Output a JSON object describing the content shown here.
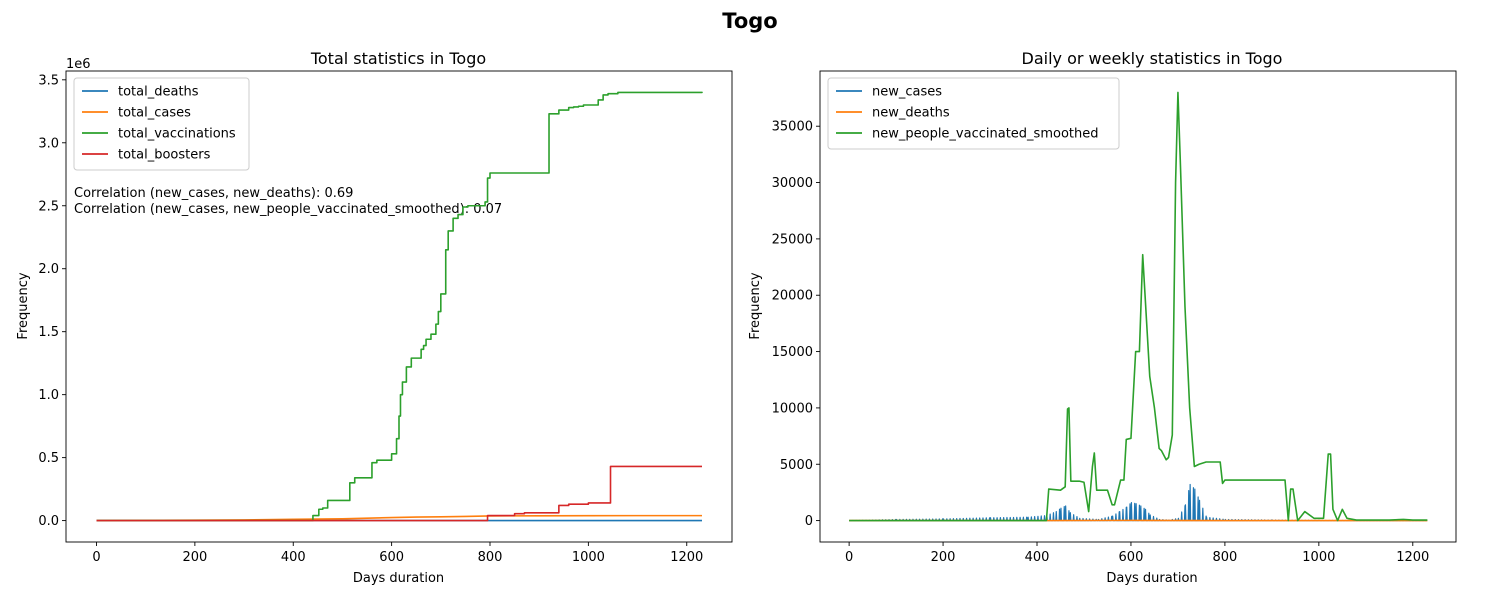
{
  "figure": {
    "title": "Togo"
  },
  "chart_data": [
    {
      "type": "line",
      "title": "Total statistics in Togo",
      "xlabel": "Days duration",
      "ylabel": "Frequency",
      "y_offset_label": "1e6",
      "xlim": [
        -62,
        1292
      ],
      "ylim": [
        -170000,
        3570000
      ],
      "xticks": [
        0,
        200,
        400,
        600,
        800,
        1000,
        1200
      ],
      "yticks": [
        0,
        500000,
        1000000,
        1500000,
        2000000,
        2500000,
        3000000,
        3500000
      ],
      "ytick_labels": [
        "0.0",
        "0.5",
        "1.0",
        "1.5",
        "2.0",
        "2.5",
        "3.0",
        "3.5"
      ],
      "legend_position": "upper left",
      "annotations": [
        "Correlation (new_cases, new_deaths): 0.69",
        "Correlation (new_cases, new_people_vaccinated_smoothed): 0.07"
      ],
      "series": [
        {
          "name": "total_deaths",
          "color": "#1f77b4",
          "x": [
            0,
            400,
            800,
            1231
          ],
          "y": [
            0,
            1000,
            290,
            290
          ]
        },
        {
          "name": "total_cases",
          "color": "#ff7f0e",
          "x": [
            0,
            200,
            300,
            400,
            500,
            600,
            650,
            700,
            750,
            800,
            900,
            1000,
            1100,
            1231
          ],
          "y": [
            0,
            3000,
            5000,
            10000,
            14000,
            24000,
            28000,
            30000,
            33000,
            37000,
            38000,
            39000,
            39500,
            39500
          ]
        },
        {
          "name": "total_vaccinations",
          "color": "#2ca02c",
          "step": true,
          "x": [
            0,
            440,
            452,
            460,
            470,
            515,
            525,
            560,
            570,
            585,
            600,
            610,
            615,
            618,
            622,
            630,
            640,
            650,
            660,
            665,
            670,
            680,
            690,
            695,
            700,
            710,
            715,
            725,
            735,
            745,
            755,
            790,
            795,
            800,
            850,
            920,
            940,
            950,
            960,
            970,
            980,
            990,
            1010,
            1020,
            1030,
            1040,
            1060,
            1100,
            1231
          ],
          "y": [
            0,
            40000,
            90000,
            100000,
            160000,
            300000,
            340000,
            460000,
            480000,
            480000,
            530000,
            650000,
            830000,
            1000000,
            1100000,
            1220000,
            1290000,
            1290000,
            1360000,
            1390000,
            1440000,
            1480000,
            1560000,
            1660000,
            1800000,
            2150000,
            2300000,
            2400000,
            2430000,
            2490000,
            2500000,
            2530000,
            2720000,
            2760000,
            2760000,
            3230000,
            3260000,
            3260000,
            3280000,
            3285000,
            3290000,
            3300000,
            3300000,
            3340000,
            3380000,
            3390000,
            3400000,
            3400000,
            3405000
          ]
        },
        {
          "name": "total_boosters",
          "color": "#d62728",
          "step": true,
          "x": [
            0,
            795,
            850,
            870,
            940,
            960,
            1000,
            1045,
            1231
          ],
          "y": [
            0,
            40000,
            55000,
            62000,
            120000,
            130000,
            140000,
            430000,
            430000
          ]
        }
      ]
    },
    {
      "type": "line",
      "title": "Daily or weekly statistics in Togo",
      "xlabel": "Days duration",
      "ylabel": "Frequency",
      "xlim": [
        -62,
        1292
      ],
      "ylim": [
        -1900,
        39900
      ],
      "xticks": [
        0,
        200,
        400,
        600,
        800,
        1000,
        1200
      ],
      "yticks": [
        0,
        5000,
        10000,
        15000,
        20000,
        25000,
        30000,
        35000
      ],
      "ytick_labels": [
        "0",
        "5000",
        "10000",
        "15000",
        "20000",
        "25000",
        "30000",
        "35000"
      ],
      "legend_position": "upper left",
      "series": [
        {
          "name": "new_cases",
          "color": "#1f77b4",
          "spiky": true,
          "x": [
            0,
            100,
            200,
            300,
            380,
            420,
            440,
            450,
            460,
            470,
            490,
            530,
            560,
            575,
            590,
            600,
            610,
            620,
            630,
            640,
            660,
            680,
            700,
            715,
            725,
            735,
            745,
            760,
            800,
            900,
            1000,
            1231
          ],
          "y": [
            0,
            100,
            150,
            250,
            300,
            450,
            800,
            1100,
            1300,
            700,
            200,
            100,
            400,
            800,
            1200,
            1600,
            1500,
            1300,
            1000,
            500,
            100,
            50,
            200,
            1400,
            3200,
            2800,
            1800,
            300,
            100,
            50,
            20,
            10
          ]
        },
        {
          "name": "new_deaths",
          "color": "#ff7f0e",
          "x": [
            0,
            400,
            600,
            800,
            1231
          ],
          "y": [
            0,
            5,
            20,
            5,
            0
          ]
        },
        {
          "name": "new_people_vaccinated_smoothed",
          "color": "#2ca02c",
          "x": [
            0,
            420,
            425,
            450,
            460,
            465,
            468,
            472,
            478,
            490,
            500,
            510,
            518,
            522,
            527,
            530,
            540,
            550,
            560,
            565,
            578,
            585,
            590,
            600,
            610,
            618,
            625,
            630,
            640,
            650,
            660,
            665,
            675,
            680,
            688,
            695,
            700,
            705,
            715,
            725,
            735,
            745,
            760,
            790,
            795,
            800,
            820,
            860,
            900,
            928,
            935,
            940,
            945,
            955,
            970,
            990,
            1010,
            1020,
            1025,
            1030,
            1040,
            1050,
            1060,
            1080,
            1100,
            1150,
            1180,
            1200,
            1231
          ],
          "y": [
            0,
            0,
            2800,
            2700,
            3000,
            9900,
            10000,
            3500,
            3500,
            3500,
            3400,
            800,
            4800,
            6000,
            2700,
            2700,
            2700,
            2700,
            1400,
            1400,
            3600,
            3600,
            7200,
            7300,
            15000,
            15000,
            23600,
            20000,
            12800,
            10000,
            6400,
            6200,
            5400,
            5600,
            7600,
            30000,
            38000,
            32000,
            19000,
            10000,
            4800,
            5000,
            5200,
            5200,
            3300,
            3600,
            3600,
            3600,
            3600,
            3600,
            0,
            2800,
            2800,
            0,
            800,
            200,
            200,
            5900,
            5900,
            1000,
            0,
            1000,
            200,
            50,
            50,
            50,
            100,
            50,
            50
          ]
        }
      ]
    }
  ]
}
